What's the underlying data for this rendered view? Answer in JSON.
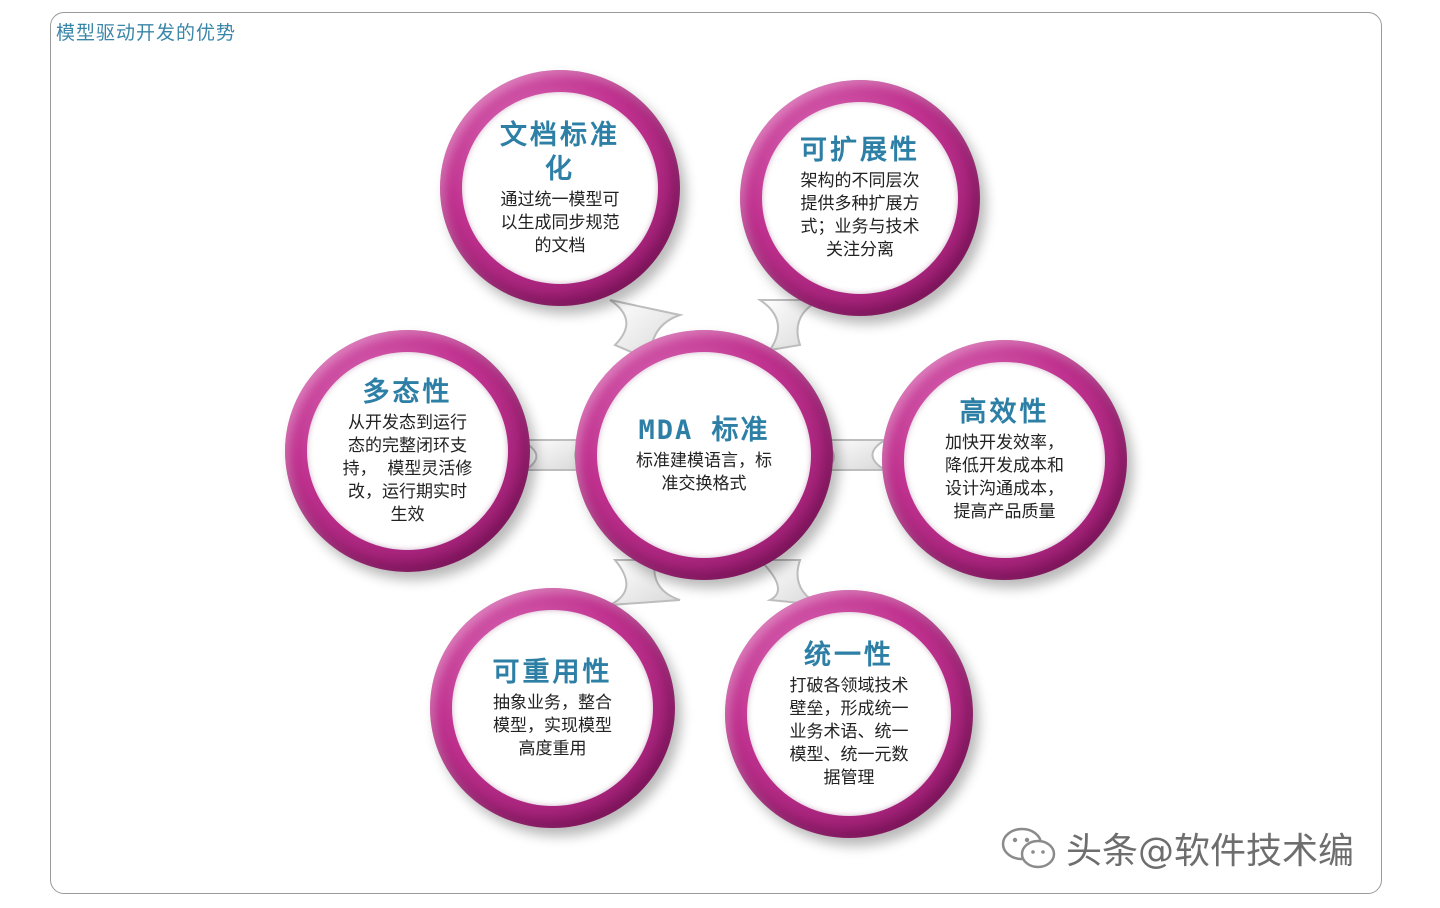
{
  "frame": {
    "title": "模型驱动开发的优势"
  },
  "center": {
    "title": "MDA 标准",
    "desc": [
      "标准建模语言，标",
      "准交换格式"
    ]
  },
  "nodes": [
    {
      "key": "doc",
      "title": [
        "文档标准",
        "化"
      ],
      "desc": [
        "通过统一模型可",
        "以生成同步规范",
        "的文档"
      ]
    },
    {
      "key": "ext",
      "title": [
        "可扩展性"
      ],
      "desc": [
        "架构的不同层次",
        "提供多种扩展方",
        "式；业务与技术",
        "关注分离"
      ]
    },
    {
      "key": "eff",
      "title": [
        "高效性"
      ],
      "desc": [
        "加快开发效率，",
        "降低开发成本和",
        "设计沟通成本，",
        "提高产品质量"
      ]
    },
    {
      "key": "uni",
      "title": [
        "统一性"
      ],
      "desc": [
        "打破各领域技术",
        "壁垒，形成统一",
        "业务术语、统一",
        "模型、统一元数",
        "据管理"
      ]
    },
    {
      "key": "reuse",
      "title": [
        "可重用性"
      ],
      "desc": [
        "抽象业务，整合",
        "模型，实现模型",
        "高度重用"
      ]
    },
    {
      "key": "poly",
      "title": [
        "多态性"
      ],
      "desc": [
        "从开发态到运行",
        "态的完整闭环支",
        "持，  模型灵活修",
        "改，运行期实时",
        "生效"
      ]
    }
  ],
  "watermark": {
    "text": "头条@软件技术编",
    "icon": "wechat-icon"
  },
  "colors": {
    "ring": "#b8288a",
    "title": "#2d7fa6",
    "frame": "#9a9a9a"
  }
}
